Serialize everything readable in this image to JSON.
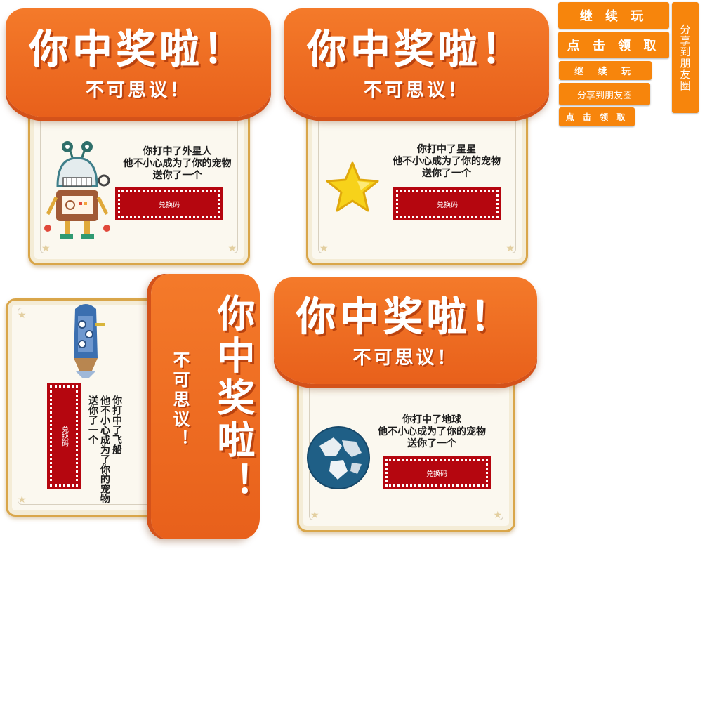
{
  "cards": [
    {
      "title": "你中奖啦！",
      "subtitle": "不可思议！",
      "lines": [
        "你打中了外星人",
        "他不小心成为了你的宠物",
        "送你了一个"
      ],
      "code_label": "兑换码",
      "prize_icon": "robot-icon"
    },
    {
      "title": "你中奖啦！",
      "subtitle": "不可思议！",
      "lines": [
        "你打中了星星",
        "他不小心成为了你的宠物",
        "送你了一个"
      ],
      "code_label": "兑换码",
      "prize_icon": "star-icon"
    },
    {
      "title": "你中奖啦！",
      "subtitle": "不可思议！",
      "lines": [
        "你打中了飞船",
        "他不小心成为了你的宠物",
        "送你了一个"
      ],
      "code_label": "兑换码",
      "prize_icon": "rocket-icon"
    },
    {
      "title": "你中奖啦！",
      "subtitle": "不可思议！",
      "lines": [
        "你打中了地球",
        "他不小心成为了你的宠物",
        "送你了一个"
      ],
      "code_label": "兑换码",
      "prize_icon": "earth-icon"
    }
  ],
  "buttons": {
    "continue_large": "继 续 玩",
    "claim_large": "点 击 领 取",
    "continue_small": "继 续 玩",
    "share_small": "分享到朋友圈",
    "claim_small": "点 击 领 取",
    "share_vertical": "分享到朋友圈"
  },
  "colors": {
    "accent": "#f7850c",
    "banner": "#f07025",
    "code_bg": "#b5060f",
    "paper": "#fbf8ef"
  }
}
